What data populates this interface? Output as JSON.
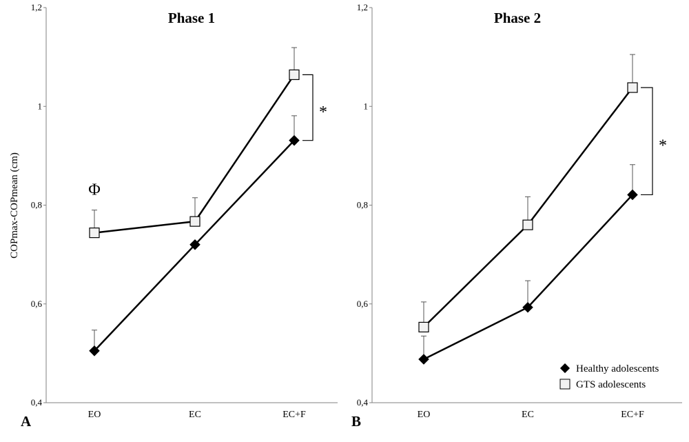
{
  "chart_data": [
    {
      "type": "line",
      "panel_label": "A",
      "title": "Phase 1",
      "ylabel": "COPmax-COPmean (cm)",
      "xlabel": "",
      "categories": [
        "EO",
        "EC",
        "EC+F"
      ],
      "ylim": [
        0.4,
        1.2
      ],
      "yticks": [
        0.4,
        0.6,
        0.8,
        1.0,
        1.2
      ],
      "ytick_labels": [
        "0,4",
        "0,6",
        "0,8",
        "1",
        "1,2"
      ],
      "grid": false,
      "series": [
        {
          "name": "Healthy adolescents",
          "marker": "filled-diamond",
          "color": "#000000",
          "values": [
            0.505,
            0.72,
            0.931
          ],
          "error_upper": [
            0.042,
            0.0,
            0.05
          ]
        },
        {
          "name": "GTS adolescents",
          "marker": "open-square",
          "color": "#000000",
          "values": [
            0.744,
            0.767,
            1.064
          ],
          "error_upper": [
            0.046,
            0.048,
            0.055
          ]
        }
      ],
      "annotations": [
        {
          "text": "Φ",
          "category": "EO",
          "y": 0.835
        },
        {
          "text": "*",
          "between_categories": "EC+F",
          "bracket": [
            0.931,
            1.064
          ]
        }
      ]
    },
    {
      "type": "line",
      "panel_label": "B",
      "title": "Phase 2",
      "ylabel": "",
      "xlabel": "",
      "categories": [
        "EO",
        "EC",
        "EC+F"
      ],
      "ylim": [
        0.4,
        1.2
      ],
      "yticks": [
        0.4,
        0.6,
        0.8,
        1.0,
        1.2
      ],
      "ytick_labels": [
        "0,4",
        "0,6",
        "0,8",
        "1",
        "1,2"
      ],
      "grid": false,
      "legend_position": "bottom-right",
      "series": [
        {
          "name": "Healthy adolescents",
          "marker": "filled-diamond",
          "color": "#000000",
          "values": [
            0.488,
            0.593,
            0.821
          ],
          "error_upper": [
            0.047,
            0.054,
            0.061
          ]
        },
        {
          "name": "GTS adolescents",
          "marker": "open-square",
          "color": "#000000",
          "values": [
            0.553,
            0.76,
            1.038
          ],
          "error_upper": [
            0.051,
            0.057,
            0.067
          ]
        }
      ],
      "annotations": [
        {
          "text": "*",
          "between_categories": "EC+F",
          "bracket": [
            0.821,
            1.038
          ]
        }
      ]
    }
  ]
}
